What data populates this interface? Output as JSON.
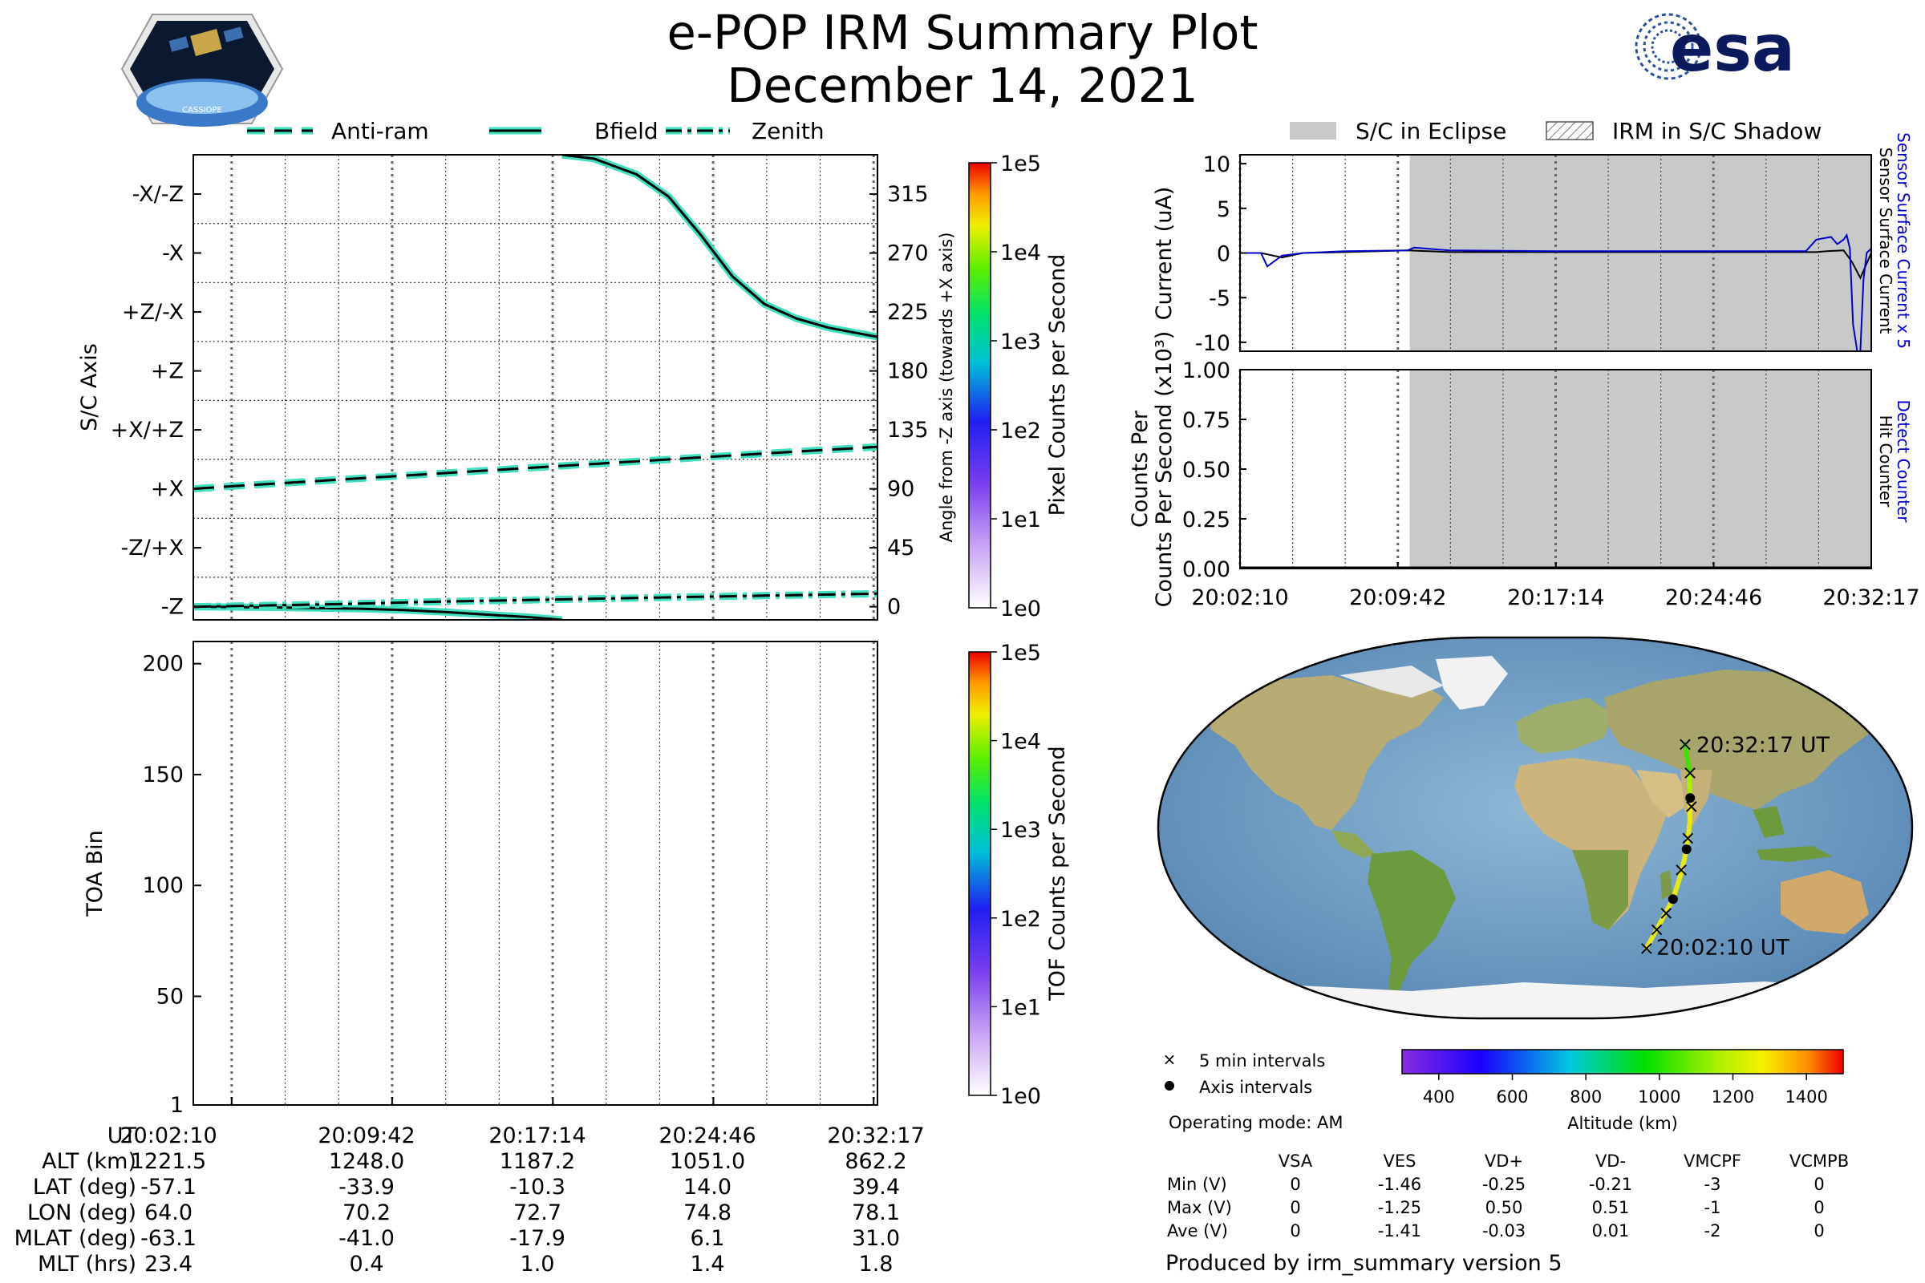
{
  "header": {
    "title": "e-POP IRM Summary Plot",
    "date": "December 14, 2021",
    "left_logo": "cassiope-mission-patch",
    "left_logo_text": "CASSIOPE",
    "right_logo": "esa-logo",
    "right_logo_text": "esa"
  },
  "colors": {
    "teal": "#40e0c0",
    "black": "#000000",
    "blue": "#0000cc",
    "eclipse_gray": "#c8caca"
  },
  "chart_data": [
    {
      "id": "sc-axis",
      "type": "line",
      "legend": [
        "Anti-ram",
        "Bfield",
        "Zenith"
      ],
      "legend_placement": "top",
      "ylabel": "S/C Axis",
      "y_categories": [
        "-X/-Z",
        "-X",
        "+Z/-X",
        "+Z",
        "+X/+Z",
        "+X",
        "-Z/+X",
        "-Z"
      ],
      "right_ylabel": "Angle from -Z axis (towards +X axis)",
      "right_ticks": [
        315,
        270,
        225,
        180,
        135,
        90,
        45,
        0
      ],
      "ylim": [
        -10,
        345
      ],
      "x_tick_labels": [
        "20:02:10",
        "20:09:42",
        "20:17:14",
        "20:24:46",
        "20:32:17"
      ],
      "x_minutes": [
        0,
        7.53,
        15.07,
        22.6,
        30.12
      ],
      "xlim": [
        -1.8,
        30.3
      ],
      "series": [
        {
          "name": "Anti-ram",
          "style": "dashed",
          "x": [
            -1.8,
            0,
            5,
            10,
            15,
            20,
            25,
            30.3
          ],
          "y": [
            90,
            92,
            97,
            102,
            107,
            112,
            117,
            122
          ]
        },
        {
          "name": "Bfield",
          "style": "solid",
          "x": [
            15.5,
            17,
            19,
            20.5,
            22,
            23.5,
            25,
            26.5,
            28,
            30.3
          ],
          "y": [
            345,
            342,
            330,
            313,
            284,
            252,
            231,
            220,
            213,
            206
          ]
        },
        {
          "name": "Bfield",
          "style": "solid",
          "x": [
            -1.8,
            2,
            6,
            8,
            10,
            12,
            14,
            15.5
          ],
          "y": [
            0,
            -0.5,
            -1.5,
            -2.5,
            -4,
            -6,
            -8,
            -10
          ]
        },
        {
          "name": "Zenith",
          "style": "dashdot",
          "x": [
            -1.8,
            5,
            10,
            15,
            20,
            25,
            30.3
          ],
          "y": [
            0,
            2,
            4,
            5.5,
            7,
            8.5,
            10
          ]
        }
      ],
      "colorbar": {
        "label": "Pixel Counts per Second",
        "ticks": [
          "1e5",
          "1e4",
          "1e3",
          "1e2",
          "1e1",
          "1e0"
        ]
      }
    },
    {
      "id": "toa",
      "type": "heatmap",
      "ylabel": "TOA Bin",
      "yticks": [
        1,
        50,
        100,
        150,
        200
      ],
      "ylim": [
        1,
        210
      ],
      "x_tick_labels": [
        "20:02:10",
        "20:09:42",
        "20:17:14",
        "20:24:46",
        "20:32:17"
      ],
      "colorbar": {
        "label": "TOF Counts per Second",
        "ticks": [
          "1e5",
          "1e4",
          "1e3",
          "1e2",
          "1e1",
          "1e0"
        ]
      }
    },
    {
      "id": "current",
      "type": "line",
      "ylabel": "Current (uA)",
      "yticks": [
        10,
        5,
        0,
        -5,
        -10
      ],
      "ylim": [
        -11,
        11
      ],
      "xlim": [
        0,
        30.12
      ],
      "eclipse_start": 8.1,
      "right_label_blue": "Sensor Surface Current x 5",
      "right_label_black": "Sensor Surface Current",
      "series": [
        {
          "name": "Sensor Surface Current",
          "color": "#000000",
          "x": [
            0,
            1,
            2,
            3,
            5,
            8,
            10,
            15,
            20,
            25,
            27.5,
            28,
            28.8,
            29.2,
            29.6,
            30.12
          ],
          "y": [
            0,
            0,
            -0.5,
            0,
            0.1,
            0.3,
            0.1,
            0.1,
            0.1,
            0.1,
            0.1,
            0.2,
            0.3,
            -1,
            -2.8,
            0
          ]
        },
        {
          "name": "Sensor Surface Current x 5",
          "color": "#0000cc",
          "x": [
            0,
            0.5,
            1,
            1.3,
            2,
            3,
            5,
            8,
            8.3,
            10,
            15,
            20,
            25,
            27,
            27.5,
            28.2,
            28.5,
            28.8,
            28.95,
            29.1,
            29.25,
            29.45,
            29.6,
            29.75,
            29.9,
            30.12
          ],
          "y": [
            0,
            0,
            0,
            -1.5,
            -0.3,
            0,
            0.2,
            0.3,
            0.6,
            0.3,
            0.2,
            0.2,
            0.2,
            0.2,
            1.5,
            1.8,
            1,
            1.5,
            2,
            0.5,
            -8,
            -11,
            -11,
            -3,
            0,
            0.5
          ]
        }
      ]
    },
    {
      "id": "counts",
      "type": "line",
      "ylabel": "Counts Per Second (x10³)",
      "yticks": [
        "1.00",
        "0.75",
        "0.50",
        "0.25",
        "0.00"
      ],
      "ylim": [
        0,
        1
      ],
      "xlim": [
        0,
        30.12
      ],
      "right_label_blue": "Detect Counter",
      "right_label_black": "Hit Counter",
      "x_tick_labels": [
        "20:02:10",
        "20:09:42",
        "20:17:14",
        "20:24:46",
        "20:32:17"
      ],
      "series": [
        {
          "name": "Detect Counter",
          "color": "#0000cc",
          "x": [
            0,
            30.12
          ],
          "y": [
            0,
            0
          ]
        },
        {
          "name": "Hit Counter",
          "color": "#000000",
          "x": [
            0,
            30.12
          ],
          "y": [
            0,
            0
          ]
        }
      ]
    }
  ],
  "eclipse_legend": {
    "eclipse": "S/C in Eclipse",
    "shadow": "IRM in S/C Shadow"
  },
  "map": {
    "start_label": "20:02:10 UT",
    "end_label": "20:32:17 UT",
    "track_lon": [
      64.0,
      67.0,
      70.2,
      71.5,
      72.7,
      73.8,
      74.8,
      76.5,
      78.1
    ],
    "track_lat": [
      -57.1,
      -45.0,
      -33.9,
      -22.0,
      -10.3,
      2.0,
      14.0,
      27.0,
      39.4
    ],
    "five_min_points": [
      [
        64.0,
        -57.1
      ],
      [
        66.2,
        -48.3
      ],
      [
        68.6,
        -40.5
      ],
      [
        71.3,
        -20.0
      ],
      [
        73.0,
        -5.0
      ],
      [
        75.0,
        10.0
      ],
      [
        76.8,
        26.0
      ],
      [
        78.1,
        39.4
      ]
    ],
    "axis_points": [
      [
        70.2,
        -33.9
      ],
      [
        72.7,
        -10.3
      ],
      [
        74.8,
        14.0
      ]
    ],
    "legend_5min": "5 min intervals",
    "legend_axis": "Axis intervals",
    "altitude_bar": {
      "label": "Altitude (km)",
      "ticks": [
        "400",
        "600",
        "800",
        "1000",
        "1200",
        "1400"
      ],
      "min": 300,
      "max": 1500
    }
  },
  "ephemeris": {
    "row_labels": [
      "UT",
      "ALT (km)",
      "LAT (deg)",
      "LON (deg)",
      "MLAT (deg)",
      "MLT (hrs)"
    ],
    "columns": [
      [
        "20:02:10",
        "1221.5",
        "-57.1",
        "64.0",
        "-63.1",
        "23.4"
      ],
      [
        "20:09:42",
        "1248.0",
        "-33.9",
        "70.2",
        "-41.0",
        "0.4"
      ],
      [
        "20:17:14",
        "1187.2",
        "-10.3",
        "72.7",
        "-17.9",
        "1.0"
      ],
      [
        "20:24:46",
        "1051.0",
        "14.0",
        "74.8",
        "6.1",
        "1.4"
      ],
      [
        "20:32:17",
        "862.2",
        "39.4",
        "78.1",
        "31.0",
        "1.8"
      ]
    ]
  },
  "voltages": {
    "operating_mode": "Operating mode: AM",
    "headers": [
      "VSA",
      "VES",
      "VD+",
      "VD-",
      "VMCPF",
      "VCMPB"
    ],
    "rows": [
      {
        "label": "Min (V)",
        "values": [
          "0",
          "-1.46",
          "-0.25",
          "-0.21",
          "-3",
          "0"
        ]
      },
      {
        "label": "Max (V)",
        "values": [
          "0",
          "-1.25",
          "0.50",
          "0.51",
          "-1",
          "0"
        ]
      },
      {
        "label": "Ave (V)",
        "values": [
          "0",
          "-1.41",
          "-0.03",
          "0.01",
          "-2",
          "0"
        ]
      }
    ]
  },
  "footer": {
    "produced_by": "Produced by irm_summary version 5"
  }
}
